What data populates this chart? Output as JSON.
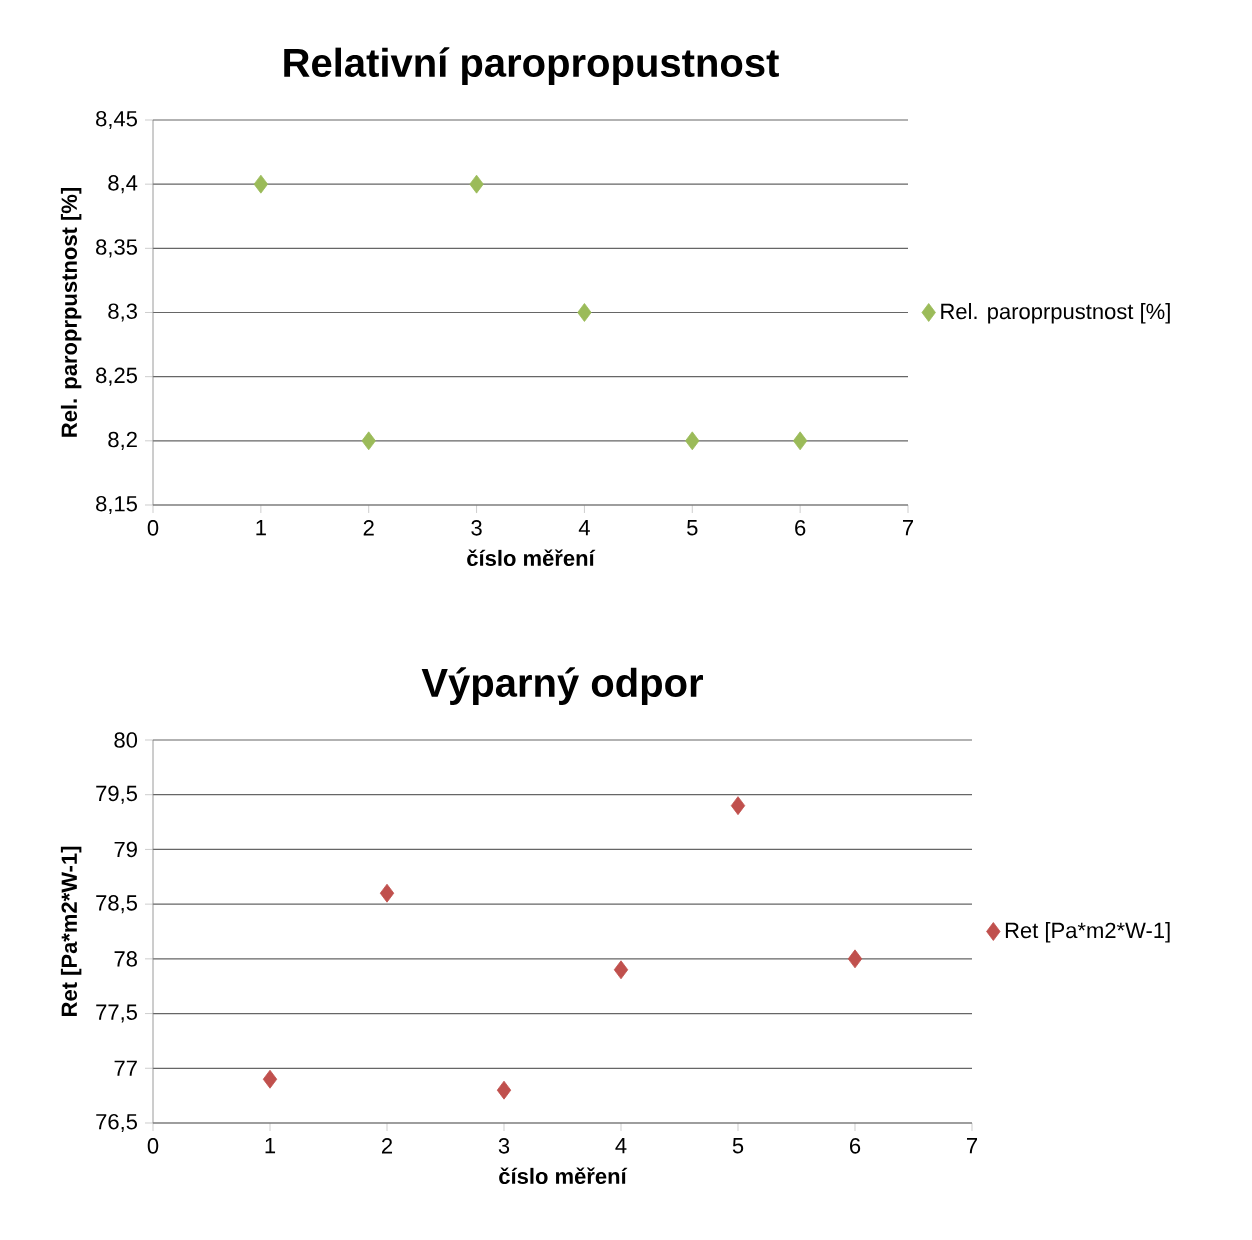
{
  "chart_data": [
    {
      "type": "scatter",
      "title": "Relativní paropropustnost",
      "xlabel": "číslo měření",
      "ylabel": "Rel. paroprpustnost [%]",
      "x": [
        1,
        2,
        3,
        4,
        5,
        6
      ],
      "series": [
        {
          "name": "Rel. paroprpustnost [%]",
          "color": "#9bbb59",
          "values": [
            8.4,
            8.2,
            8.4,
            8.3,
            8.2,
            8.2
          ]
        }
      ],
      "xlim": [
        0,
        7
      ],
      "xticks": [
        0,
        1,
        2,
        3,
        4,
        5,
        6,
        7
      ],
      "ylim": [
        8.15,
        8.45
      ],
      "yticks": [
        {
          "value": 8.15,
          "label": "8,15"
        },
        {
          "value": 8.2,
          "label": "8,2"
        },
        {
          "value": 8.25,
          "label": "8,25"
        },
        {
          "value": 8.3,
          "label": "8,3"
        },
        {
          "value": 8.35,
          "label": "8,35"
        },
        {
          "value": 8.4,
          "label": "8,4"
        },
        {
          "value": 8.45,
          "label": "8,45"
        }
      ],
      "grid": "y",
      "legend": "right",
      "marker": "diamond"
    },
    {
      "type": "scatter",
      "title": "Výparný odpor",
      "xlabel": "číslo měření",
      "ylabel": "Ret [Pa*m2*W-1]",
      "x": [
        1,
        2,
        3,
        4,
        5,
        6
      ],
      "series": [
        {
          "name": "Ret [Pa*m2*W-1]",
          "color": "#c0504d",
          "values": [
            76.9,
            78.6,
            76.8,
            77.9,
            79.4,
            78.0
          ]
        }
      ],
      "xlim": [
        0,
        7
      ],
      "xticks": [
        0,
        1,
        2,
        3,
        4,
        5,
        6,
        7
      ],
      "ylim": [
        76.5,
        80
      ],
      "yticks": [
        {
          "value": 76.5,
          "label": "76,5"
        },
        77,
        {
          "value": 77.5,
          "label": "77,5"
        },
        78,
        {
          "value": 78.5,
          "label": "78,5"
        },
        79,
        {
          "value": 79.5,
          "label": "79,5"
        },
        80
      ],
      "grid": "y",
      "legend": "right",
      "marker": "diamond"
    }
  ]
}
